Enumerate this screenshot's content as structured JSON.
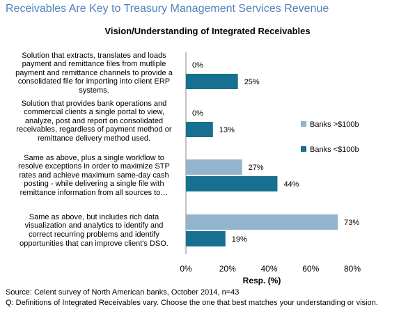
{
  "page": {
    "title": "Receivables Are Key to Treasury Management Services Revenue",
    "source": "Source: Celent survey of North American banks, October 2014, n=43",
    "question": "Q: Definitions of Integrated Receivables vary. Choose the one that best matches your understanding or vision."
  },
  "colors": {
    "large_banks": "#93b4cc",
    "small_banks": "#17708f"
  },
  "chart_data": {
    "type": "bar",
    "orientation": "horizontal",
    "title": "Vision/Understanding  of Integrated Receivables",
    "xlabel": "Resp. (%)",
    "ylabel": "",
    "xlim": [
      0,
      80
    ],
    "xticks": [
      "0%",
      "20%",
      "40%",
      "60%",
      "80%"
    ],
    "grid": false,
    "legend_position": "right",
    "categories": [
      "Solution that extracts, translates and loads payment and remittance files from mutliple payment and remittance channels to provide a consolidated file for importing into client ERP systems.",
      "Solution that provides bank operations and commercial clients a single portal to view, analyze, post and report on consolidated receivables, regardless of payment method or remittance delivery method used.",
      "Same as above, plus a single workflow to resolve exceptions in order to maximize STP rates and achieve maximum same-day cash posting - while delivering a single file with remittance information from all sources to…",
      "Same as above, but includes rich data visualization and analytics to identify and correct recurring problems and identify opportunities that can improve client's DSO."
    ],
    "category_lines": [
      [
        "Solution that extracts, translates and loads",
        "payment and remittance files from mutliple",
        "payment and remittance channels to provide a",
        "consolidated file for importing into client ERP",
        "systems."
      ],
      [
        "Solution that provides bank operations and",
        "commercial clients a single portal to view,",
        "analyze, post and report on consolidated",
        "receivables, regardless of payment method or",
        "remittance delivery method used."
      ],
      [
        "Same as above, plus a single workflow to",
        "resolve exceptions in order to maximize STP",
        "rates and achieve maximum same-day cash",
        "posting - while delivering a single file with",
        "remittance information from all sources to…"
      ],
      [
        "Same as above, but includes rich data",
        "visualization and analytics to identify and",
        "correct recurring problems and identify",
        "opportunities that can improve client's DSO."
      ]
    ],
    "series": [
      {
        "name": "Banks >$100b",
        "values": [
          0,
          0,
          27,
          73
        ],
        "labels": [
          "0%",
          "0%",
          "27%",
          "73%"
        ]
      },
      {
        "name": "Banks <$100b",
        "values": [
          25,
          13,
          44,
          19
        ],
        "labels": [
          "25%",
          "13%",
          "44%",
          "19%"
        ]
      }
    ]
  }
}
